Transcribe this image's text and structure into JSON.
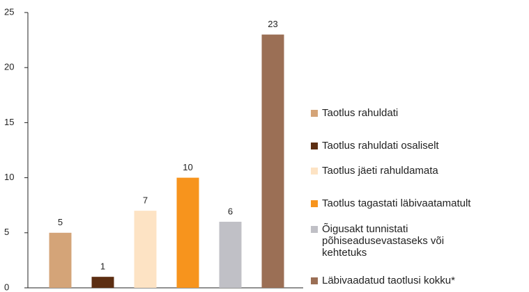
{
  "chart_data": {
    "type": "bar",
    "categories": [
      "Taotlus rahuldati",
      "Taotlus rahuldati osaliselt",
      "Taotlus jäeti rahuldamata",
      "Taotlus tagastati läbivaatamatult",
      "Õigusakt tunnistati põhiseadusevastaseks või kehtetuks",
      "Läbivaadatud taotlusi kokku*"
    ],
    "values": [
      5,
      1,
      7,
      10,
      6,
      23
    ],
    "colors": [
      "#d4a478",
      "#5c2e12",
      "#fde3c4",
      "#f7941d",
      "#c0c0c6",
      "#9b6f55"
    ],
    "ylim": [
      0,
      25
    ],
    "yticks": [
      0,
      5,
      10,
      15,
      20,
      25
    ],
    "grid": false
  }
}
